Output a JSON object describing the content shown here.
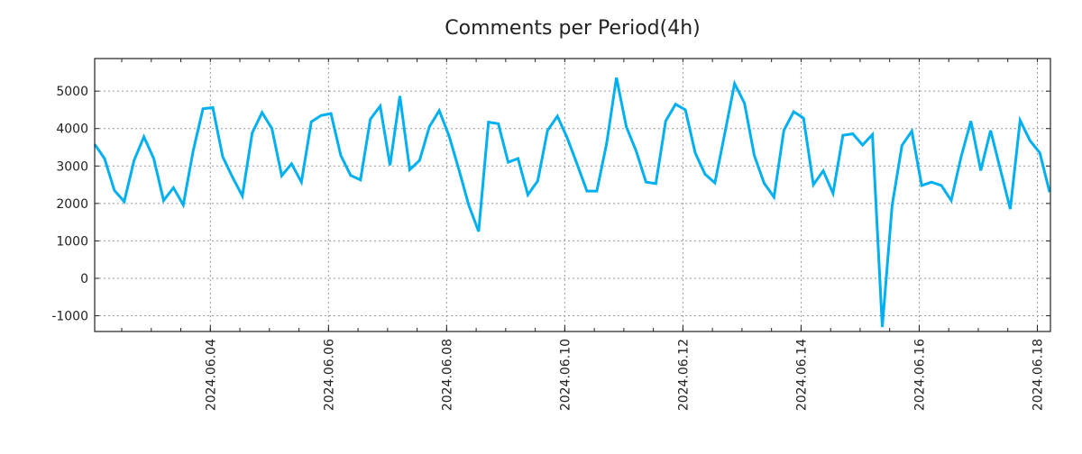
{
  "chart_data": {
    "type": "line",
    "title": "Comments per Period(4h)",
    "xlabel": "",
    "ylabel": "",
    "x_start": "2024-06-02T01:00",
    "x_step_hours": 4,
    "x_range_days_from_start": [
      0,
      16.18
    ],
    "ylim": [
      -1420,
      5870
    ],
    "grid": true,
    "y_ticks": [
      -1000,
      0,
      1000,
      2000,
      3000,
      4000,
      5000
    ],
    "y_tick_labels": [
      "-1000",
      "0",
      "1000",
      "2000",
      "3000",
      "4000",
      "5000"
    ],
    "x_tick_labels": [
      "2024.06.04",
      "2024.06.06",
      "2024.06.08",
      "2024.06.10",
      "2024.06.12",
      "2024.06.14",
      "2024.06.16",
      "2024.06.18"
    ],
    "series": [
      {
        "name": "comments",
        "color": "#00b0f0",
        "values": [
          3580,
          3200,
          2350,
          2050,
          3150,
          3780,
          3200,
          2080,
          2420,
          1960,
          3400,
          4530,
          4560,
          3250,
          2700,
          2200,
          3880,
          4430,
          4000,
          2740,
          3060,
          2570,
          4180,
          4350,
          4400,
          3280,
          2750,
          2630,
          4250,
          4600,
          3020,
          4870,
          2900,
          3150,
          4050,
          4480,
          3800,
          2900,
          1950,
          1250,
          4170,
          4130,
          3100,
          3200,
          2230,
          2600,
          3950,
          4330,
          3750,
          3050,
          2330,
          2330,
          3600,
          5360,
          4050,
          3400,
          2570,
          2530,
          4200,
          4650,
          4500,
          3350,
          2780,
          2550,
          3870,
          5200,
          4680,
          3280,
          2540,
          2170,
          3950,
          4450,
          4280,
          2500,
          2870,
          2270,
          3820,
          3860,
          3560,
          3840,
          -1300,
          1950,
          3550,
          3930,
          2480,
          2570,
          2480,
          2080,
          3240,
          4200,
          2880,
          3950,
          2900,
          1850,
          4220,
          3680,
          3350,
          2300
        ]
      }
    ]
  }
}
